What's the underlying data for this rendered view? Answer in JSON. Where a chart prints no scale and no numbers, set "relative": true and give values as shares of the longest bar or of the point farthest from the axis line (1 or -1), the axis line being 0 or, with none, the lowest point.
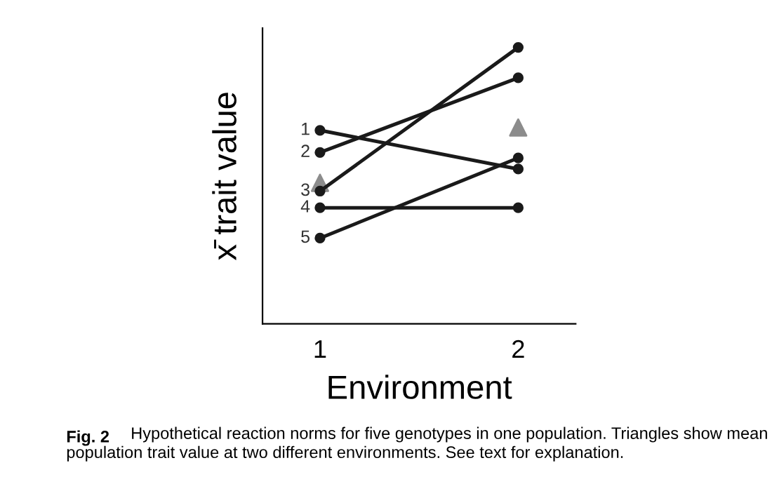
{
  "chart_data": {
    "type": "line",
    "relative": true,
    "xlabel": "Environment",
    "ylabel": "x̄ trait value",
    "categories": [
      "1",
      "2"
    ],
    "series": [
      {
        "name": "1",
        "color": "#1a1a1a",
        "values": [
          0.7,
          0.56
        ]
      },
      {
        "name": "2",
        "color": "#1a1a1a",
        "values": [
          0.62,
          0.89
        ]
      },
      {
        "name": "3",
        "color": "#1a1a1a",
        "values": [
          0.48,
          1.0
        ]
      },
      {
        "name": "4",
        "color": "#1a1a1a",
        "values": [
          0.42,
          0.42
        ]
      },
      {
        "name": "5",
        "color": "#1a1a1a",
        "values": [
          0.31,
          0.6
        ]
      },
      {
        "type": "scatter",
        "marker": "triangle",
        "color": "#8c8c8c",
        "values": [
          0.51,
          0.71
        ]
      }
    ],
    "marker": "circle",
    "line_style": "solid",
    "legend": false,
    "grid": false,
    "tick_labels": "x",
    "annotations": [
      "Fig. 2",
      "Hypothetical reaction norms for five genotypes in one population. Triangles show mean population trait value at two different environments. See text for explanation."
    ]
  }
}
